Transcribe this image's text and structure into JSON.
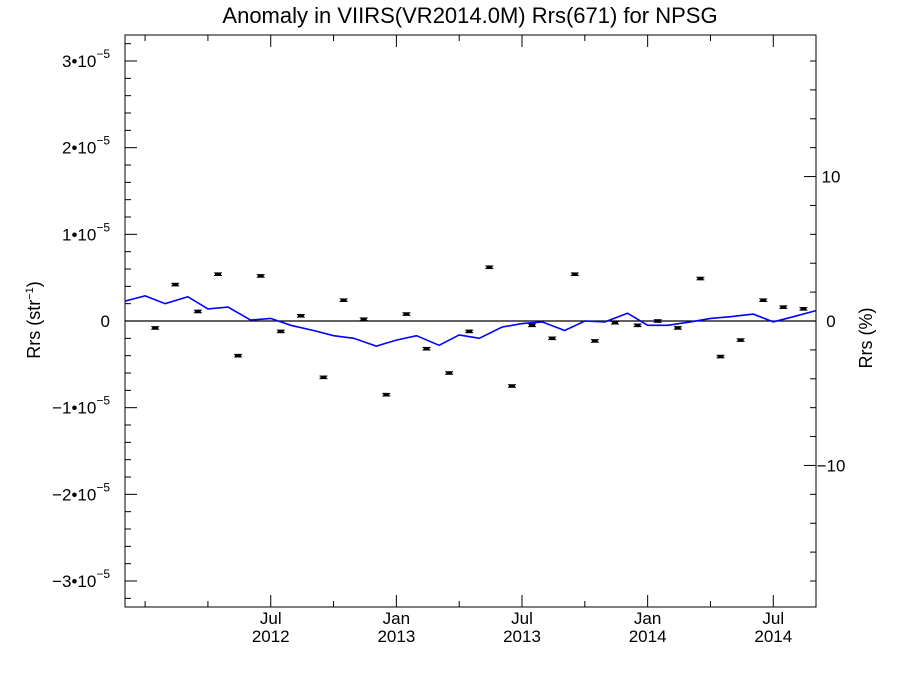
{
  "chart_data": {
    "type": "scatter",
    "title": "Anomaly in VIIRS(VR2014.0M) Rrs(671) for NPSG",
    "ylabel_left": {
      "base": "Rrs (str",
      "sup": "−1",
      "end": ")"
    },
    "ylabel_right": "Rrs (%)",
    "x_axis": {
      "unit": "year",
      "range": [
        2011.92,
        2014.67
      ],
      "major_ticks": [
        {
          "value": 2012.5,
          "month": "Jul",
          "year": "2012"
        },
        {
          "value": 2013.0,
          "month": "Jan",
          "year": "2013"
        },
        {
          "value": 2013.5,
          "month": "Jul",
          "year": "2013"
        },
        {
          "value": 2014.0,
          "month": "Jan",
          "year": "2014"
        },
        {
          "value": 2014.5,
          "month": "Jul",
          "year": "2014"
        }
      ],
      "minor_ticks": [
        2012.0,
        2012.25,
        2012.75,
        2013.25,
        2013.75,
        2014.25
      ]
    },
    "y_left": {
      "range": [
        -3.3e-05,
        3.3e-05
      ],
      "ticks": [
        {
          "value": 3e-05,
          "mant": "3•10",
          "exp": "−5"
        },
        {
          "value": 2e-05,
          "mant": "2•10",
          "exp": "−5"
        },
        {
          "value": 1e-05,
          "mant": "1•10",
          "exp": "−5"
        },
        {
          "value": 0,
          "mant": "0",
          "exp": ""
        },
        {
          "value": -1e-05,
          "mant": "−1•10",
          "exp": "−5"
        },
        {
          "value": -2e-05,
          "mant": "−2•10",
          "exp": "−5"
        },
        {
          "value": -3e-05,
          "mant": "−3•10",
          "exp": "−5"
        }
      ],
      "minor_step": 2e-06
    },
    "y_right": {
      "range": [
        -19.8,
        19.8
      ],
      "ticks": [
        {
          "value": 10,
          "label": "10"
        },
        {
          "value": 0,
          "label": "0"
        },
        {
          "value": -10,
          "label": "−10"
        }
      ],
      "minor_step": 2
    },
    "zero_line": true,
    "grid": false,
    "series": [
      {
        "kind": "points_with_errorbars",
        "color": "#000000",
        "x": [
          2012.04,
          2012.12,
          2012.21,
          2012.29,
          2012.37,
          2012.46,
          2012.54,
          2012.62,
          2012.71,
          2012.79,
          2012.87,
          2012.96,
          2013.04,
          2013.12,
          2013.21,
          2013.29,
          2013.37,
          2013.46,
          2013.54,
          2013.62,
          2013.71,
          2013.79,
          2013.87,
          2013.96,
          2014.04,
          2014.12,
          2014.21,
          2014.29,
          2014.37,
          2014.46,
          2014.54,
          2014.62
        ],
        "y": [
          -8e-07,
          4.2e-06,
          1.1e-06,
          5.4e-06,
          -4e-06,
          5.2e-06,
          -1.2e-06,
          6e-07,
          -6.5e-06,
          2.4e-06,
          2e-07,
          -8.5e-06,
          8e-07,
          -3.2e-06,
          -6e-06,
          -1.2e-06,
          6.2e-06,
          -7.5e-06,
          -5e-07,
          -2e-06,
          5.4e-06,
          -2.3e-06,
          -2e-07,
          -5e-07,
          0,
          -8e-07,
          4.9e-06,
          -4.1e-06,
          -2.2e-06,
          2.4e-06,
          1.6e-06,
          1.4e-06
        ],
        "err": [
          1.5e-07,
          1.5e-07,
          1.5e-07,
          1.5e-07,
          1.5e-07,
          1.5e-07,
          1.5e-07,
          1.5e-07,
          1.5e-07,
          1.5e-07,
          1.5e-07,
          1.5e-07,
          1.5e-07,
          1.5e-07,
          1.5e-07,
          1.5e-07,
          1.5e-07,
          1.5e-07,
          1.5e-07,
          1.5e-07,
          1.5e-07,
          1.5e-07,
          1.5e-07,
          1.5e-07,
          1.5e-07,
          1.5e-07,
          1.5e-07,
          1.5e-07,
          1.5e-07,
          1.5e-07,
          1.5e-07,
          1.5e-07
        ]
      },
      {
        "kind": "line",
        "color": "#0000ff",
        "x": [
          2011.92,
          2012.0,
          2012.08,
          2012.17,
          2012.25,
          2012.33,
          2012.42,
          2012.5,
          2012.58,
          2012.67,
          2012.75,
          2012.83,
          2012.92,
          2013.0,
          2013.08,
          2013.17,
          2013.25,
          2013.33,
          2013.42,
          2013.5,
          2013.58,
          2013.67,
          2013.75,
          2013.83,
          2013.92,
          2014.0,
          2014.08,
          2014.17,
          2014.25,
          2014.33,
          2014.42,
          2014.5,
          2014.58,
          2014.67
        ],
        "y": [
          2.3e-06,
          2.9e-06,
          2e-06,
          2.8e-06,
          1.4e-06,
          1.6e-06,
          1e-07,
          3e-07,
          -5e-07,
          -1.1e-06,
          -1.7e-06,
          -2e-06,
          -2.9e-06,
          -2.2e-06,
          -1.7e-06,
          -2.8e-06,
          -1.6e-06,
          -2e-06,
          -7e-07,
          -3e-07,
          -1e-07,
          -1.1e-06,
          0,
          -1e-07,
          9e-07,
          -5e-07,
          -5e-07,
          -1e-07,
          3e-07,
          5e-07,
          8e-07,
          -1e-07,
          5e-07,
          1.2e-06
        ]
      }
    ]
  }
}
